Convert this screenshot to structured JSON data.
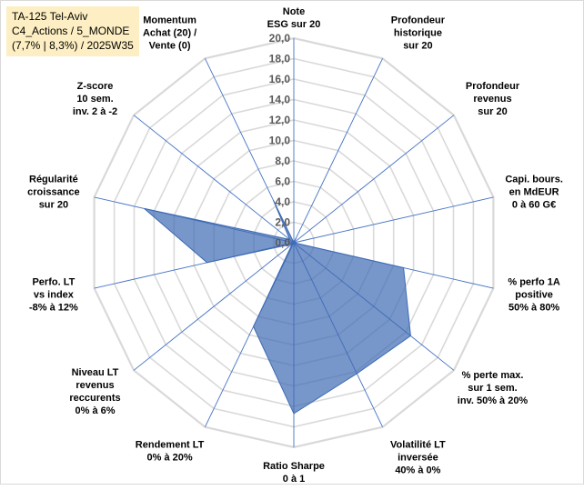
{
  "header": {
    "lines": [
      "TA-125 Tel-Aviv",
      "C4_Actions / 5_MONDE",
      "(7,7% | 8,3%) / 2025W35"
    ]
  },
  "colors": {
    "fill": "#3d6ab3",
    "fill_opacity": 0.7,
    "spoke": "#4472c4",
    "ring": "#d9d9d9",
    "text": "#000000",
    "highlight_bg": "#fdefc3"
  },
  "chart_data": {
    "type": "radar",
    "rmax": 20,
    "tick_step": 2,
    "tick_labels": [
      "0,0",
      "2,0",
      "4,0",
      "6,0",
      "8,0",
      "10,0",
      "12,0",
      "14,0",
      "16,0",
      "18,0",
      "20,0"
    ],
    "axes": [
      [
        "Note",
        "ESG sur 20"
      ],
      [
        "Profondeur",
        "historique",
        "sur 20"
      ],
      [
        "Profondeur",
        "revenus",
        "sur 20"
      ],
      [
        "Capi. bours.",
        "en MdEUR",
        "0 à 60 G€"
      ],
      [
        "% perfo 1A",
        "positive",
        "50% à 80%"
      ],
      [
        "% perte max.",
        "sur 1 sem.",
        "inv. 50% à 20%"
      ],
      [
        "Volatilité LT",
        "inversée",
        "40% à 0%"
      ],
      [
        "Ratio Sharpe",
        "0 à 1"
      ],
      [
        "Rendement LT",
        "0% à 20%"
      ],
      [
        "Niveau LT",
        "revenus",
        "reccurents",
        "0% à 6%"
      ],
      [
        "Perfo. LT",
        "vs index",
        "-8% à 12%"
      ],
      [
        "Régularité",
        "croissance",
        "sur 20"
      ],
      [
        "Z-score",
        "10 sem.",
        "inv. 2 à -2"
      ],
      [
        "Momentum",
        "Achat (20) /",
        "Vente (0)"
      ]
    ],
    "values": [
      0,
      0.5,
      0,
      0,
      11,
      14.6,
      14.2,
      16.7,
      9.1,
      0.2,
      8.7,
      15,
      0.5,
      4.6
    ],
    "grid": true,
    "legend": "none"
  }
}
